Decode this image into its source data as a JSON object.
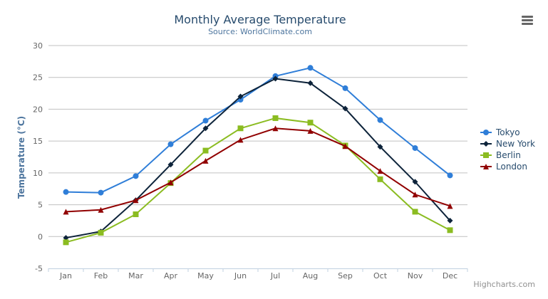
{
  "chart_data": {
    "type": "line",
    "title": "Monthly Average Temperature",
    "subtitle": "Source: WorldClimate.com",
    "xlabel": "",
    "ylabel": "Temperature (°C)",
    "ylim": [
      -5,
      30
    ],
    "yticks": [
      -5,
      0,
      5,
      10,
      15,
      20,
      25,
      30
    ],
    "grid": true,
    "legend_placement": "right",
    "categories": [
      "Jan",
      "Feb",
      "Mar",
      "Apr",
      "May",
      "Jun",
      "Jul",
      "Aug",
      "Sep",
      "Oct",
      "Nov",
      "Dec"
    ],
    "series": [
      {
        "name": "Tokyo",
        "color": "#2f7ed8",
        "marker": "circle",
        "values": [
          7.0,
          6.9,
          9.5,
          14.5,
          18.2,
          21.5,
          25.2,
          26.5,
          23.3,
          18.3,
          13.9,
          9.6
        ]
      },
      {
        "name": "New York",
        "color": "#0d233a",
        "marker": "diamond",
        "values": [
          -0.2,
          0.8,
          5.7,
          11.3,
          17.0,
          22.0,
          24.8,
          24.1,
          20.1,
          14.1,
          8.6,
          2.5
        ]
      },
      {
        "name": "Berlin",
        "color": "#8bbc21",
        "marker": "square",
        "values": [
          -0.9,
          0.6,
          3.5,
          8.4,
          13.5,
          17.0,
          18.6,
          17.9,
          14.3,
          9.0,
          3.9,
          1.0
        ]
      },
      {
        "name": "London",
        "color": "#910000",
        "marker": "triangle",
        "values": [
          3.9,
          4.2,
          5.7,
          8.5,
          11.9,
          15.2,
          17.0,
          16.6,
          14.2,
          10.3,
          6.6,
          4.8
        ]
      }
    ]
  },
  "credits": "Highcharts.com",
  "menu_icon": "hamburger-menu-icon"
}
